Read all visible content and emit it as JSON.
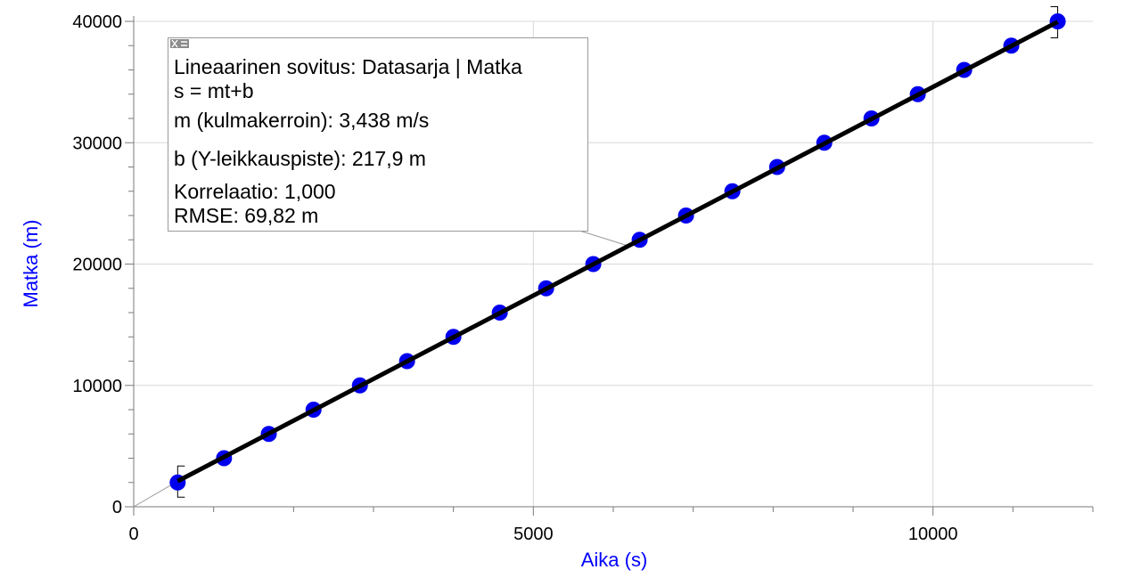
{
  "chart_data": {
    "type": "scatter",
    "xlabel": "Aika (s)",
    "ylabel": "Matka (m)",
    "xlim": [
      0,
      12000
    ],
    "ylim": [
      0,
      40000
    ],
    "x_ticks": [
      0,
      5000,
      10000
    ],
    "x_tick_labels": [
      "0",
      "5000",
      "10000"
    ],
    "x_minor_step": 1000,
    "y_ticks": [
      0,
      10000,
      20000,
      30000,
      40000
    ],
    "y_tick_labels": [
      "0",
      "10000",
      "20000",
      "30000",
      "40000"
    ],
    "y_minor_step": 2000,
    "grid": true,
    "colors": {
      "points": "#0000ee",
      "fit_line": "#000000",
      "axis_label": "#0000ff",
      "grid": "#d8d8d8"
    },
    "series": [
      {
        "x": [
          550,
          1130,
          1690,
          2250,
          2830,
          3420,
          4000,
          4580,
          5160,
          5750,
          6330,
          6910,
          7490,
          8050,
          8640,
          9230,
          9810,
          10390,
          10980,
          11560
        ],
        "y": [
          2000,
          4000,
          6000,
          8000,
          10000,
          12000,
          14000,
          16000,
          18000,
          20000,
          22000,
          24000,
          26000,
          28000,
          30000,
          32000,
          34000,
          36000,
          38000,
          40000
        ]
      }
    ],
    "fit": {
      "m": 3.438,
      "b": 217.9,
      "x_range": [
        550,
        11560
      ]
    }
  },
  "fit_box": {
    "title": "Lineaarinen sovitus: Datasarja | Matka",
    "equation": "s = mt+b",
    "slope": "m (kulmakerroin): 3,438 m/s",
    "intercept": "b (Y-leikkauspiste): 217,9 m",
    "correlation": "Korrelaatio: 1,000",
    "rmse": "RMSE: 69,82 m"
  }
}
